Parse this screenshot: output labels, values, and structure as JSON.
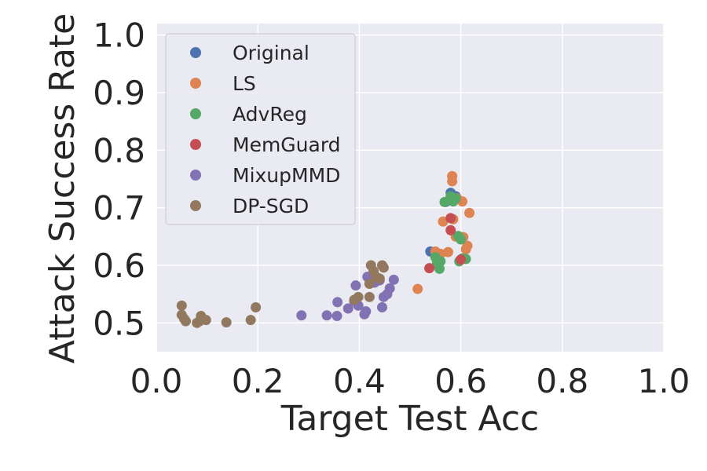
{
  "chart_data": {
    "type": "scatter",
    "title": "",
    "xlabel": "Target Test Acc",
    "ylabel": "Attack Success Rate",
    "xlim": [
      0.0,
      1.0
    ],
    "ylim": [
      0.45,
      1.02
    ],
    "xticks": [
      "0.0",
      "0.2",
      "0.4",
      "0.6",
      "0.8",
      "1.0"
    ],
    "yticks": [
      "0.5",
      "0.6",
      "0.7",
      "0.8",
      "0.9",
      "1.0"
    ],
    "grid": true,
    "legend_position": "upper-left",
    "series": [
      {
        "name": "Original",
        "color": "#4c72b0",
        "points": [
          [
            0.54,
            0.624
          ],
          [
            0.58,
            0.726
          ],
          [
            0.59,
            0.72
          ],
          [
            0.57,
            0.71
          ]
        ]
      },
      {
        "name": "LS",
        "color": "#dd8452",
        "points": [
          [
            0.515,
            0.559
          ],
          [
            0.55,
            0.624
          ],
          [
            0.565,
            0.676
          ],
          [
            0.575,
            0.623
          ],
          [
            0.583,
            0.755
          ],
          [
            0.583,
            0.746
          ],
          [
            0.585,
            0.68
          ],
          [
            0.593,
            0.716
          ],
          [
            0.603,
            0.711
          ],
          [
            0.605,
            0.649
          ],
          [
            0.61,
            0.628
          ],
          [
            0.613,
            0.634
          ],
          [
            0.617,
            0.691
          ],
          [
            0.56,
            0.62
          ],
          [
            0.59,
            0.65
          ]
        ]
      },
      {
        "name": "AdvReg",
        "color": "#55a868",
        "points": [
          [
            0.55,
            0.614
          ],
          [
            0.558,
            0.594
          ],
          [
            0.56,
            0.607
          ],
          [
            0.568,
            0.71
          ],
          [
            0.58,
            0.72
          ],
          [
            0.585,
            0.711
          ],
          [
            0.59,
            0.716
          ],
          [
            0.595,
            0.651
          ],
          [
            0.6,
            0.645
          ],
          [
            0.603,
            0.612
          ],
          [
            0.597,
            0.607
          ],
          [
            0.61,
            0.611
          ],
          [
            0.553,
            0.603
          ]
        ]
      },
      {
        "name": "MemGuard",
        "color": "#c44e52",
        "points": [
          [
            0.538,
            0.595
          ],
          [
            0.58,
            0.682
          ],
          [
            0.58,
            0.661
          ],
          [
            0.6,
            0.61
          ]
        ]
      },
      {
        "name": "MixupMMD",
        "color": "#8172b3",
        "points": [
          [
            0.286,
            0.513
          ],
          [
            0.336,
            0.513
          ],
          [
            0.356,
            0.512
          ],
          [
            0.357,
            0.536
          ],
          [
            0.378,
            0.525
          ],
          [
            0.39,
            0.538
          ],
          [
            0.393,
            0.565
          ],
          [
            0.398,
            0.53
          ],
          [
            0.41,
            0.515
          ],
          [
            0.413,
            0.52
          ],
          [
            0.416,
            0.58
          ],
          [
            0.43,
            0.57
          ],
          [
            0.44,
            0.574
          ],
          [
            0.445,
            0.527
          ],
          [
            0.448,
            0.545
          ],
          [
            0.455,
            0.55
          ],
          [
            0.46,
            0.56
          ],
          [
            0.468,
            0.575
          ]
        ]
      },
      {
        "name": "DP-SGD",
        "color": "#937860",
        "points": [
          [
            0.05,
            0.53
          ],
          [
            0.05,
            0.514
          ],
          [
            0.055,
            0.507
          ],
          [
            0.058,
            0.503
          ],
          [
            0.08,
            0.5
          ],
          [
            0.085,
            0.503
          ],
          [
            0.088,
            0.512
          ],
          [
            0.098,
            0.505
          ],
          [
            0.138,
            0.501
          ],
          [
            0.186,
            0.505
          ],
          [
            0.196,
            0.527
          ],
          [
            0.39,
            0.54
          ],
          [
            0.398,
            0.545
          ],
          [
            0.42,
            0.545
          ],
          [
            0.42,
            0.568
          ],
          [
            0.423,
            0.6
          ],
          [
            0.428,
            0.59
          ],
          [
            0.433,
            0.58
          ],
          [
            0.44,
            0.577
          ],
          [
            0.445,
            0.6
          ],
          [
            0.448,
            0.596
          ]
        ]
      }
    ]
  }
}
